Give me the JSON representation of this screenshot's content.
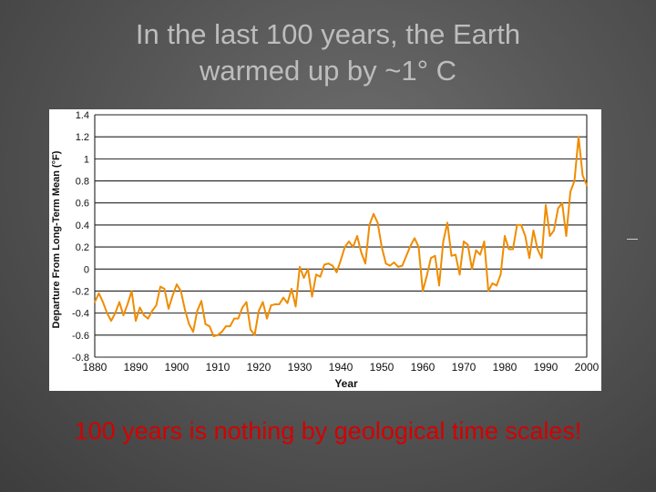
{
  "slide": {
    "title_line1": "In the last 100 years, the Earth",
    "title_line2": "warmed up by ~1° C",
    "caption": "100 years is nothing by geological time scales!"
  },
  "colors": {
    "line": "#f08c00",
    "caption": "#d40000",
    "title": "#bdbdbd"
  },
  "chart_data": {
    "type": "line",
    "title": "",
    "xlabel": "Year",
    "ylabel": "Departure From Long-Term Mean (°F)",
    "xlim": [
      1880,
      2000
    ],
    "ylim": [
      -0.8,
      1.4
    ],
    "xticks": [
      1880,
      1890,
      1900,
      1910,
      1920,
      1930,
      1940,
      1950,
      1960,
      1970,
      1980,
      1990,
      2000
    ],
    "xtick_labels": [
      "1880",
      "1890",
      "1900",
      "1910",
      "1920",
      "1930",
      "1940",
      "1950",
      "1960",
      "1970",
      "1980",
      "1990",
      "2000"
    ],
    "yticks": [
      -0.8,
      -0.6,
      -0.4,
      -0.2,
      0,
      0.2,
      0.4,
      0.6,
      0.8,
      1,
      1.2,
      1.4
    ],
    "ytick_labels": [
      "-0.8",
      "-0.6",
      "-0.4",
      "-0.2",
      "0",
      "0.2",
      "0.4",
      "0.6",
      "0.8",
      "1",
      "1.2",
      "1.4"
    ],
    "grid": "horizontal",
    "series": [
      {
        "x": [
          1880,
          1881,
          1882,
          1883,
          1884,
          1885,
          1886,
          1887,
          1888,
          1889,
          1890,
          1891,
          1892,
          1893,
          1894,
          1895,
          1896,
          1897,
          1898,
          1899,
          1900,
          1901,
          1902,
          1903,
          1904,
          1905,
          1906,
          1907,
          1908,
          1909,
          1910,
          1911,
          1912,
          1913,
          1914,
          1915,
          1916,
          1917,
          1918,
          1919,
          1920,
          1921,
          1922,
          1923,
          1924,
          1925,
          1926,
          1927,
          1928,
          1929,
          1930,
          1931,
          1932,
          1933,
          1934,
          1935,
          1936,
          1937,
          1938,
          1939,
          1940,
          1941,
          1942,
          1943,
          1944,
          1945,
          1946,
          1947,
          1948,
          1949,
          1950,
          1951,
          1952,
          1953,
          1954,
          1955,
          1956,
          1957,
          1958,
          1959,
          1960,
          1961,
          1962,
          1963,
          1964,
          1965,
          1966,
          1967,
          1968,
          1969,
          1970,
          1971,
          1972,
          1973,
          1974,
          1975,
          1976,
          1977,
          1978,
          1979,
          1980,
          1981,
          1982,
          1983,
          1984,
          1985,
          1986,
          1987,
          1988,
          1989,
          1990,
          1991,
          1992,
          1993,
          1994,
          1995,
          1996,
          1997,
          1998,
          1999,
          2000
        ],
        "values": [
          -0.3,
          -0.22,
          -0.3,
          -0.4,
          -0.47,
          -0.4,
          -0.3,
          -0.42,
          -0.32,
          -0.2,
          -0.47,
          -0.35,
          -0.42,
          -0.45,
          -0.38,
          -0.33,
          -0.16,
          -0.18,
          -0.36,
          -0.24,
          -0.14,
          -0.2,
          -0.37,
          -0.5,
          -0.57,
          -0.38,
          -0.29,
          -0.5,
          -0.52,
          -0.61,
          -0.6,
          -0.57,
          -0.52,
          -0.52,
          -0.45,
          -0.45,
          -0.35,
          -0.3,
          -0.55,
          -0.6,
          -0.38,
          -0.3,
          -0.45,
          -0.33,
          -0.32,
          -0.32,
          -0.26,
          -0.31,
          -0.18,
          -0.34,
          0.02,
          -0.08,
          0.0,
          -0.25,
          -0.05,
          -0.07,
          0.04,
          0.05,
          0.03,
          -0.03,
          0.08,
          0.2,
          0.25,
          0.2,
          0.3,
          0.15,
          0.05,
          0.4,
          0.5,
          0.42,
          0.2,
          0.05,
          0.03,
          0.06,
          0.02,
          0.03,
          0.12,
          0.21,
          0.28,
          0.2,
          -0.2,
          -0.06,
          0.1,
          0.12,
          -0.15,
          0.25,
          0.42,
          0.12,
          0.13,
          -0.05,
          0.25,
          0.22,
          0.0,
          0.17,
          0.13,
          0.25,
          -0.2,
          -0.13,
          -0.15,
          -0.05,
          0.3,
          0.18,
          0.18,
          0.4,
          0.4,
          0.3,
          0.1,
          0.35,
          0.18,
          0.1,
          0.58,
          0.3,
          0.35,
          0.55,
          0.6,
          0.3,
          0.7,
          0.8,
          1.2,
          0.85,
          0.76
        ]
      }
    ]
  }
}
